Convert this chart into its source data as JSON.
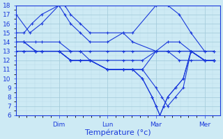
{
  "background_color": "#cdeaf4",
  "grid_color_major": "#a0c8d8",
  "grid_color_minor": "#b8d8e8",
  "line_color": "#1a3adb",
  "ylim": [
    6,
    18
  ],
  "ytick_step": 1,
  "xlabel": "Température (°c)",
  "xlabel_fontsize": 8,
  "tick_fontsize": 6.5,
  "day_labels": [
    "Dim",
    "Lun",
    "Mar",
    "Mer"
  ],
  "day_positions": [
    0.22,
    0.47,
    0.72,
    0.97
  ],
  "xlim": [
    0,
    1.05
  ],
  "series": [
    {
      "x": [
        0.0,
        0.07,
        0.13,
        0.22,
        0.25,
        0.28,
        0.33,
        0.38,
        0.47,
        0.55,
        0.6,
        0.72,
        0.78,
        0.84,
        0.9,
        0.97,
        1.02
      ],
      "y": [
        17,
        15,
        16,
        18,
        18,
        17,
        16,
        15,
        15,
        15,
        15,
        18,
        18,
        17,
        15,
        13,
        13
      ]
    },
    {
      "x": [
        0.0,
        0.04,
        0.08,
        0.13,
        0.22,
        0.25,
        0.28,
        0.33,
        0.38,
        0.47,
        0.55,
        0.6,
        0.72,
        0.78,
        0.84,
        0.9,
        0.97,
        1.02
      ],
      "y": [
        15,
        15,
        16,
        17,
        18,
        17,
        16,
        15,
        14,
        14,
        15,
        14,
        13,
        14,
        14,
        13,
        12,
        12
      ]
    },
    {
      "x": [
        0.0,
        0.04,
        0.1,
        0.13,
        0.22,
        0.28,
        0.33,
        0.38,
        0.47,
        0.55,
        0.6,
        0.72,
        0.78,
        0.84,
        0.9,
        0.97,
        1.02
      ],
      "y": [
        14,
        14,
        14,
        14,
        14,
        13,
        13,
        13,
        13,
        13,
        13,
        13,
        13,
        13,
        13,
        13,
        13
      ]
    },
    {
      "x": [
        0.0,
        0.04,
        0.1,
        0.13,
        0.22,
        0.28,
        0.33,
        0.38,
        0.47,
        0.55,
        0.6,
        0.65,
        0.72,
        0.78,
        0.84,
        0.9,
        0.97,
        1.02
      ],
      "y": [
        14,
        14,
        13,
        13,
        13,
        13,
        13,
        12,
        12,
        12,
        12,
        12,
        13,
        13,
        13,
        13,
        12,
        12
      ]
    },
    {
      "x": [
        0.0,
        0.04,
        0.1,
        0.13,
        0.22,
        0.28,
        0.33,
        0.38,
        0.47,
        0.55,
        0.6,
        0.65,
        0.72,
        0.78,
        0.84,
        0.9,
        0.97,
        1.02
      ],
      "y": [
        14,
        14,
        13,
        13,
        13,
        12,
        12,
        12,
        11,
        11,
        11,
        11,
        13,
        13,
        12,
        12,
        12,
        12
      ]
    },
    {
      "x": [
        0.0,
        0.04,
        0.1,
        0.13,
        0.22,
        0.28,
        0.33,
        0.38,
        0.47,
        0.55,
        0.6,
        0.65,
        0.72,
        0.75,
        0.78,
        0.82,
        0.86,
        0.9,
        0.97,
        1.02
      ],
      "y": [
        13,
        13,
        13,
        13,
        13,
        12,
        12,
        12,
        11,
        11,
        11,
        11,
        9,
        8,
        7,
        8,
        9,
        13,
        12,
        12
      ]
    },
    {
      "x": [
        0.0,
        0.04,
        0.1,
        0.13,
        0.22,
        0.28,
        0.33,
        0.38,
        0.47,
        0.55,
        0.6,
        0.65,
        0.7,
        0.72,
        0.74,
        0.76,
        0.78,
        0.82,
        0.86,
        0.9,
        0.97,
        1.02
      ],
      "y": [
        13,
        13,
        13,
        13,
        13,
        12,
        12,
        12,
        11,
        11,
        11,
        10,
        8,
        7,
        6,
        7,
        8,
        9,
        10,
        13,
        12,
        12
      ]
    },
    {
      "x": [
        0.0,
        0.04,
        0.1,
        0.22,
        0.28,
        0.33,
        0.38,
        0.47,
        0.55,
        0.6,
        0.65,
        0.7,
        0.72,
        0.74,
        0.76,
        0.78,
        0.82,
        0.86,
        0.9,
        0.97,
        1.02
      ],
      "y": [
        13,
        13,
        13,
        13,
        12,
        12,
        12,
        11,
        11,
        11,
        10,
        8,
        7,
        6,
        7,
        8,
        9,
        10,
        13,
        12,
        12
      ]
    }
  ]
}
